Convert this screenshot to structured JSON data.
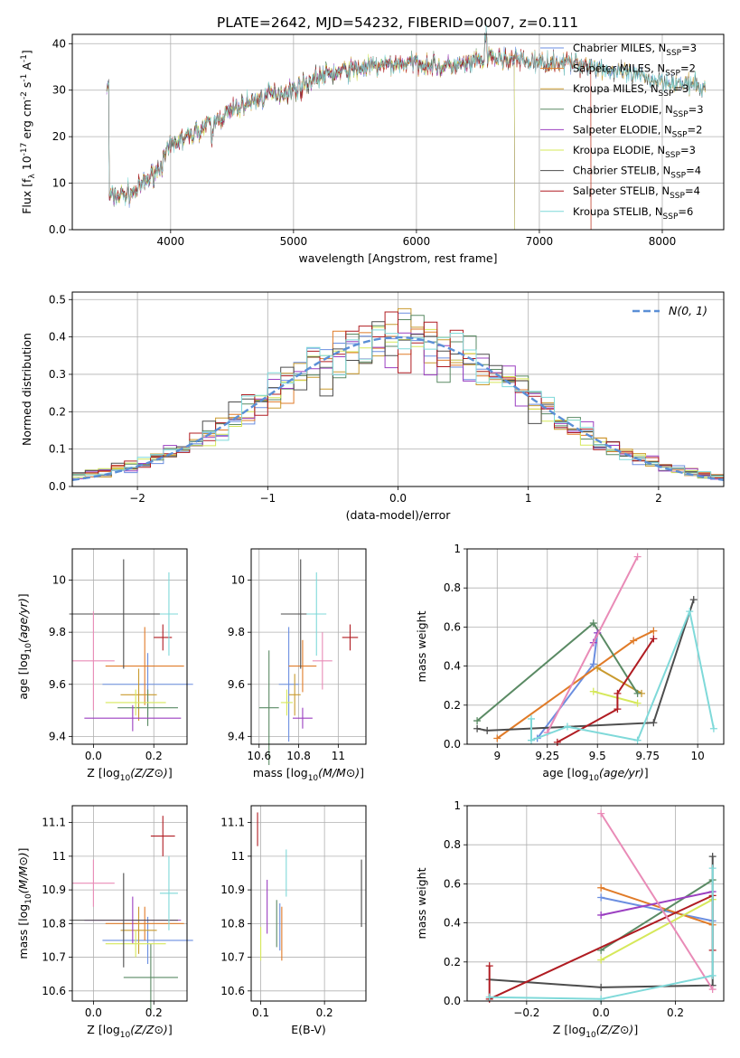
{
  "figure": {
    "title": "PLATE=2642, MJD=54232, FIBERID=0007, z=0.111"
  },
  "chart_data": [
    {
      "id": "spectrum",
      "type": "line",
      "xlabel": "wavelength [Angstrom, rest frame]",
      "ylabel": "Flux [f_λ 10^-17 erg cm^-2 s^-1 A^-1]",
      "xlim": [
        3200,
        8500
      ],
      "ylim": [
        0,
        42
      ],
      "xticks": [
        4000,
        5000,
        6000,
        7000,
        8000
      ],
      "yticks": [
        0,
        10,
        20,
        30,
        40
      ],
      "legend_position": "top-right",
      "series": [
        {
          "name": "Chabrier MILES, N_SSP=3",
          "color": "#6b8ee0",
          "end": 8350
        },
        {
          "name": "Salpeter MILES, N_SSP=2",
          "color": "#e07b28",
          "end": 7420
        },
        {
          "name": "Kroupa MILES, N_SSP=3",
          "color": "#c99a2e",
          "end": 8350
        },
        {
          "name": "Chabrier ELODIE, N_SSP=3",
          "color": "#5a8a64",
          "end": 6800
        },
        {
          "name": "Salpeter ELODIE, N_SSP=2",
          "color": "#9b3fc1",
          "end": 6800
        },
        {
          "name": "Kroupa ELODIE, N_SSP=3",
          "color": "#d6e85a",
          "end": 6800
        },
        {
          "name": "Chabrier STELIB, N_SSP=4",
          "color": "#4d4d4d",
          "end": 8350
        },
        {
          "name": "Salpeter STELIB, N_SSP=4",
          "color": "#b01c22",
          "end": 7420
        },
        {
          "name": "Kroupa STELIB, N_SSP=6",
          "color": "#7fd9d9",
          "end": 8350
        }
      ],
      "continuum": [
        [
          3500,
          7
        ],
        [
          3700,
          8
        ],
        [
          3900,
          13
        ],
        [
          4000,
          18
        ],
        [
          4200,
          21
        ],
        [
          4400,
          24
        ],
        [
          4600,
          27
        ],
        [
          4800,
          29
        ],
        [
          5000,
          30
        ],
        [
          5200,
          33
        ],
        [
          5400,
          34
        ],
        [
          5600,
          35
        ],
        [
          5800,
          35.5
        ],
        [
          6000,
          36
        ],
        [
          6200,
          35
        ],
        [
          6400,
          35.5
        ],
        [
          6600,
          37
        ],
        [
          6800,
          36.5
        ],
        [
          7000,
          36
        ],
        [
          7200,
          36
        ],
        [
          7400,
          35.5
        ],
        [
          7600,
          34
        ],
        [
          7800,
          33
        ],
        [
          8000,
          32
        ],
        [
          8200,
          31
        ],
        [
          8350,
          30.5
        ]
      ]
    },
    {
      "id": "residuals",
      "type": "histogram",
      "xlabel": "(data-model)/error",
      "ylabel": "Normed distribution",
      "xlim": [
        -2.5,
        2.5
      ],
      "ylim": [
        0,
        0.52
      ],
      "xticks": [
        -2,
        -1,
        0,
        1,
        2
      ],
      "yticks": [
        0.0,
        0.1,
        0.2,
        0.3,
        0.4,
        0.5
      ],
      "legend": {
        "label": "N(0, 1)",
        "color": "#5b8fd6",
        "position": "top-right"
      }
    },
    {
      "id": "age-vs-Z",
      "type": "scatter",
      "xlabel": "Z [log10(Z/Z⊙)]",
      "ylabel": "age  [log10(age/yr)]",
      "xlim": [
        -0.07,
        0.31
      ],
      "ylim": [
        9.37,
        10.12
      ],
      "xticks": [
        0.0,
        0.2
      ],
      "yticks": [
        9.4,
        9.6,
        9.8,
        10.0
      ],
      "points": [
        {
          "x": 0.18,
          "y": 9.6,
          "xerr": 0.15,
          "yerr": 0.12,
          "color": "#6b8ee0"
        },
        {
          "x": 0.17,
          "y": 9.67,
          "xerr": 0.13,
          "yerr": 0.15,
          "color": "#e07b28"
        },
        {
          "x": 0.15,
          "y": 9.56,
          "xerr": 0.06,
          "yerr": 0.1,
          "color": "#c99a2e"
        },
        {
          "x": 0.18,
          "y": 9.51,
          "xerr": 0.1,
          "yerr": 0.07,
          "color": "#5a8a64"
        },
        {
          "x": 0.13,
          "y": 9.47,
          "xerr": 0.16,
          "yerr": 0.05,
          "color": "#9b3fc1"
        },
        {
          "x": 0.14,
          "y": 9.53,
          "xerr": 0.1,
          "yerr": 0.05,
          "color": "#d6e85a"
        },
        {
          "x": 0.1,
          "y": 9.87,
          "xerr": 0.18,
          "yerr": 0.21,
          "color": "#4d4d4d"
        },
        {
          "x": 0.23,
          "y": 9.78,
          "xerr": 0.03,
          "yerr": 0.05,
          "color": "#b01c22"
        },
        {
          "x": 0.0,
          "y": 9.69,
          "xerr": 0.07,
          "yerr": 0.19,
          "color": "#e98bb7"
        },
        {
          "x": 0.25,
          "y": 9.87,
          "xerr": 0.03,
          "yerr": 0.16,
          "color": "#7fd9d9"
        }
      ]
    },
    {
      "id": "age-vs-mass",
      "type": "scatter",
      "xlabel": "mass [log10(M/M⊙)]",
      "ylabel": "",
      "xlim": [
        10.56,
        11.14
      ],
      "ylim": [
        9.37,
        10.12
      ],
      "xticks": [
        10.6,
        10.8,
        11.0
      ],
      "yticks": [
        9.4,
        9.6,
        9.8,
        10.0
      ],
      "points": [
        {
          "x": 10.75,
          "y": 9.6,
          "xerr": 0.05,
          "yerr": 0.22,
          "color": "#6b8ee0"
        },
        {
          "x": 10.82,
          "y": 9.67,
          "xerr": 0.07,
          "yerr": 0.1,
          "color": "#e07b28"
        },
        {
          "x": 10.78,
          "y": 9.56,
          "xerr": 0.03,
          "yerr": 0.08,
          "color": "#c99a2e"
        },
        {
          "x": 10.65,
          "y": 9.51,
          "xerr": 0.05,
          "yerr": 0.22,
          "color": "#5a8a64"
        },
        {
          "x": 10.82,
          "y": 9.47,
          "xerr": 0.05,
          "yerr": 0.04,
          "color": "#9b3fc1"
        },
        {
          "x": 10.74,
          "y": 9.53,
          "xerr": 0.03,
          "yerr": 0.05,
          "color": "#d6e85a"
        },
        {
          "x": 10.81,
          "y": 9.87,
          "xerr": 0.1,
          "yerr": 0.21,
          "color": "#4d4d4d"
        },
        {
          "x": 11.06,
          "y": 9.78,
          "xerr": 0.04,
          "yerr": 0.05,
          "color": "#b01c22"
        },
        {
          "x": 10.92,
          "y": 9.69,
          "xerr": 0.05,
          "yerr": 0.11,
          "color": "#e98bb7"
        },
        {
          "x": 10.89,
          "y": 9.87,
          "xerr": 0.05,
          "yerr": 0.16,
          "color": "#7fd9d9"
        }
      ]
    },
    {
      "id": "weight-vs-age",
      "type": "line",
      "xlabel": "age  [log10(age/yr)]",
      "ylabel": "mass weight",
      "xlim": [
        8.85,
        10.13
      ],
      "ylim": [
        0,
        1.0
      ],
      "xticks": [
        9.0,
        9.25,
        9.5,
        9.75,
        10.0
      ],
      "yticks": [
        0.0,
        0.2,
        0.4,
        0.6,
        0.8,
        1.0
      ],
      "series": [
        {
          "color": "#6b8ee0",
          "pts": [
            [
              9.2,
              0.03
            ],
            [
              9.48,
              0.41
            ],
            [
              9.5,
              0.57
            ]
          ]
        },
        {
          "color": "#e07b28",
          "pts": [
            [
              9.0,
              0.03
            ],
            [
              9.68,
              0.53
            ],
            [
              9.78,
              0.58
            ]
          ]
        },
        {
          "color": "#c99a2e",
          "pts": [
            [
              9.5,
              0.39
            ],
            [
              9.72,
              0.26
            ]
          ]
        },
        {
          "color": "#5a8a64",
          "pts": [
            [
              8.9,
              0.12
            ],
            [
              9.48,
              0.62
            ],
            [
              9.7,
              0.26
            ]
          ]
        },
        {
          "color": "#9b3fc1",
          "pts": [
            [
              9.48,
              0.52
            ],
            [
              9.5,
              0.57
            ]
          ]
        },
        {
          "color": "#d6e85a",
          "pts": [
            [
              9.48,
              0.27
            ],
            [
              9.7,
              0.21
            ]
          ]
        },
        {
          "color": "#4d4d4d",
          "pts": [
            [
              8.9,
              0.08
            ],
            [
              8.95,
              0.07
            ],
            [
              9.78,
              0.11
            ],
            [
              9.98,
              0.74
            ]
          ]
        },
        {
          "color": "#b01c22",
          "pts": [
            [
              9.3,
              0.01
            ],
            [
              9.6,
              0.18
            ],
            [
              9.6,
              0.26
            ],
            [
              9.78,
              0.54
            ]
          ]
        },
        {
          "color": "#e98bb7",
          "pts": [
            [
              9.25,
              0.06
            ],
            [
              9.7,
              0.96
            ]
          ]
        },
        {
          "color": "#7fd9d9",
          "pts": [
            [
              9.17,
              0.13
            ],
            [
              9.17,
              0.02
            ],
            [
              9.35,
              0.09
            ],
            [
              9.7,
              0.02
            ],
            [
              9.96,
              0.68
            ],
            [
              10.08,
              0.08
            ]
          ]
        }
      ]
    },
    {
      "id": "mass-vs-Z",
      "type": "scatter",
      "xlabel": "Z [log10(Z/Z⊙)]",
      "ylabel": "mass [log10(M/M⊙)]",
      "xlim": [
        -0.07,
        0.31
      ],
      "ylim": [
        10.57,
        11.15
      ],
      "xticks": [
        0.0,
        0.2
      ],
      "yticks": [
        10.6,
        10.7,
        10.8,
        10.9,
        11.0,
        11.1
      ],
      "points": [
        {
          "x": 0.18,
          "y": 10.75,
          "xerr": 0.15,
          "yerr": 0.07,
          "color": "#6b8ee0"
        },
        {
          "x": 0.17,
          "y": 10.8,
          "xerr": 0.13,
          "yerr": 0.05,
          "color": "#e07b28"
        },
        {
          "x": 0.15,
          "y": 10.78,
          "xerr": 0.06,
          "yerr": 0.07,
          "color": "#c99a2e"
        },
        {
          "x": 0.19,
          "y": 10.64,
          "xerr": 0.09,
          "yerr": 0.1,
          "color": "#5a8a64"
        },
        {
          "x": 0.13,
          "y": 10.81,
          "xerr": 0.16,
          "yerr": 0.07,
          "color": "#9b3fc1"
        },
        {
          "x": 0.14,
          "y": 10.74,
          "xerr": 0.1,
          "yerr": 0.04,
          "color": "#d6e85a"
        },
        {
          "x": 0.1,
          "y": 10.81,
          "xerr": 0.18,
          "yerr": 0.14,
          "color": "#4d4d4d"
        },
        {
          "x": 0.23,
          "y": 11.06,
          "xerr": 0.04,
          "yerr": 0.06,
          "color": "#b01c22"
        },
        {
          "x": 0.0,
          "y": 10.92,
          "xerr": 0.07,
          "yerr": 0.07,
          "color": "#e98bb7"
        },
        {
          "x": 0.25,
          "y": 10.89,
          "xerr": 0.03,
          "yerr": 0.11,
          "color": "#7fd9d9"
        }
      ]
    },
    {
      "id": "mass-vs-ebv",
      "type": "scatter",
      "xlabel": "E(B-V)",
      "ylabel": "",
      "xlim": [
        0.085,
        0.265
      ],
      "ylim": [
        10.57,
        11.15
      ],
      "xticks": [
        0.1,
        0.2
      ],
      "yticks": [
        10.6,
        10.7,
        10.8,
        10.9,
        11.0,
        11.1
      ],
      "points": [
        {
          "x": 0.13,
          "y": 10.79,
          "xerr": 0.0,
          "yerr": 0.07,
          "color": "#6b8ee0"
        },
        {
          "x": 0.133,
          "y": 10.77,
          "xerr": 0.0,
          "yerr": 0.08,
          "color": "#e07b28"
        },
        {
          "x": 0.125,
          "y": 10.8,
          "xerr": 0.0,
          "yerr": 0.07,
          "color": "#5a8a64"
        },
        {
          "x": 0.11,
          "y": 10.85,
          "xerr": 0.0,
          "yerr": 0.08,
          "color": "#9b3fc1"
        },
        {
          "x": 0.1,
          "y": 10.74,
          "xerr": 0.0,
          "yerr": 0.05,
          "color": "#d6e85a"
        },
        {
          "x": 0.258,
          "y": 10.89,
          "xerr": 0.0,
          "yerr": 0.1,
          "color": "#4d4d4d"
        },
        {
          "x": 0.095,
          "y": 11.08,
          "xerr": 0.0,
          "yerr": 0.05,
          "color": "#b01c22"
        },
        {
          "x": 0.14,
          "y": 10.95,
          "xerr": 0.0,
          "yerr": 0.07,
          "color": "#7fd9d9"
        }
      ]
    },
    {
      "id": "weight-vs-Z",
      "type": "line",
      "xlabel": "Z [log10(Z/Z⊙)]",
      "ylabel": "mass weight",
      "xlim": [
        -0.36,
        0.33
      ],
      "ylim": [
        0,
        1.0
      ],
      "xticks": [
        -0.2,
        0.0,
        0.2
      ],
      "yticks": [
        0.0,
        0.2,
        0.4,
        0.6,
        0.8,
        1.0
      ],
      "series": [
        {
          "color": "#6b8ee0",
          "pts": [
            [
              0.0,
              0.53
            ],
            [
              0.3,
              0.41
            ]
          ]
        },
        {
          "color": "#e07b28",
          "pts": [
            [
              0.0,
              0.58
            ],
            [
              0.3,
              0.39
            ]
          ]
        },
        {
          "color": "#5a8a64",
          "pts": [
            [
              0.0,
              0.26
            ],
            [
              0.3,
              0.62
            ]
          ]
        },
        {
          "color": "#9b3fc1",
          "pts": [
            [
              0.0,
              0.44
            ],
            [
              0.3,
              0.56
            ]
          ]
        },
        {
          "color": "#d6e85a",
          "pts": [
            [
              0.0,
              0.21
            ],
            [
              0.3,
              0.52
            ]
          ]
        },
        {
          "color": "#4d4d4d",
          "pts": [
            [
              -0.3,
              0.11
            ],
            [
              0.0,
              0.07
            ],
            [
              0.3,
              0.08
            ],
            [
              0.3,
              0.74
            ]
          ]
        },
        {
          "color": "#b01c22",
          "pts": [
            [
              -0.3,
              0.18
            ],
            [
              -0.3,
              0.01
            ],
            [
              0.3,
              0.54
            ],
            [
              0.3,
              0.26
            ]
          ]
        },
        {
          "color": "#e98bb7",
          "pts": [
            [
              0.0,
              0.96
            ],
            [
              0.3,
              0.06
            ]
          ]
        },
        {
          "color": "#7fd9d9",
          "pts": [
            [
              -0.3,
              0.02
            ],
            [
              0.0,
              0.01
            ],
            [
              0.3,
              0.13
            ],
            [
              0.3,
              0.68
            ]
          ]
        }
      ]
    }
  ]
}
